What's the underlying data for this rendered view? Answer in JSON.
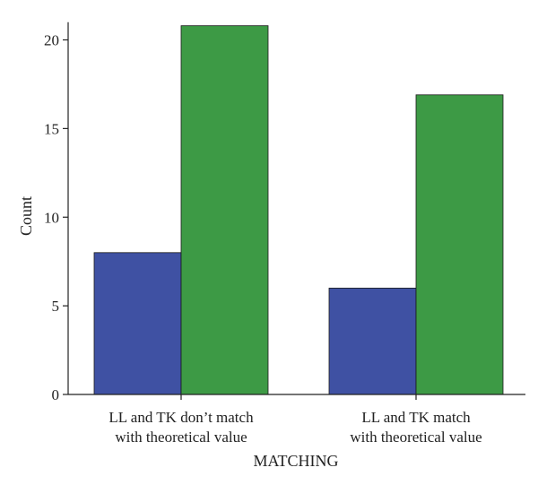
{
  "chart_data": {
    "type": "bar",
    "title": "",
    "xlabel": "MATCHING",
    "ylabel": "Count",
    "ylim": [
      0,
      21
    ],
    "yticks": [
      0,
      5,
      10,
      15,
      20
    ],
    "grid": false,
    "legend": "none",
    "categories": [
      [
        "LL and TK don’t match",
        "with theoretical value"
      ],
      [
        "LL and TK match",
        "with theoretical value"
      ]
    ],
    "series": [
      {
        "values": [
          8,
          6
        ],
        "color": "#3f51a3"
      },
      {
        "values": [
          20.8,
          16.9
        ],
        "color": "#3d9a45"
      }
    ]
  }
}
